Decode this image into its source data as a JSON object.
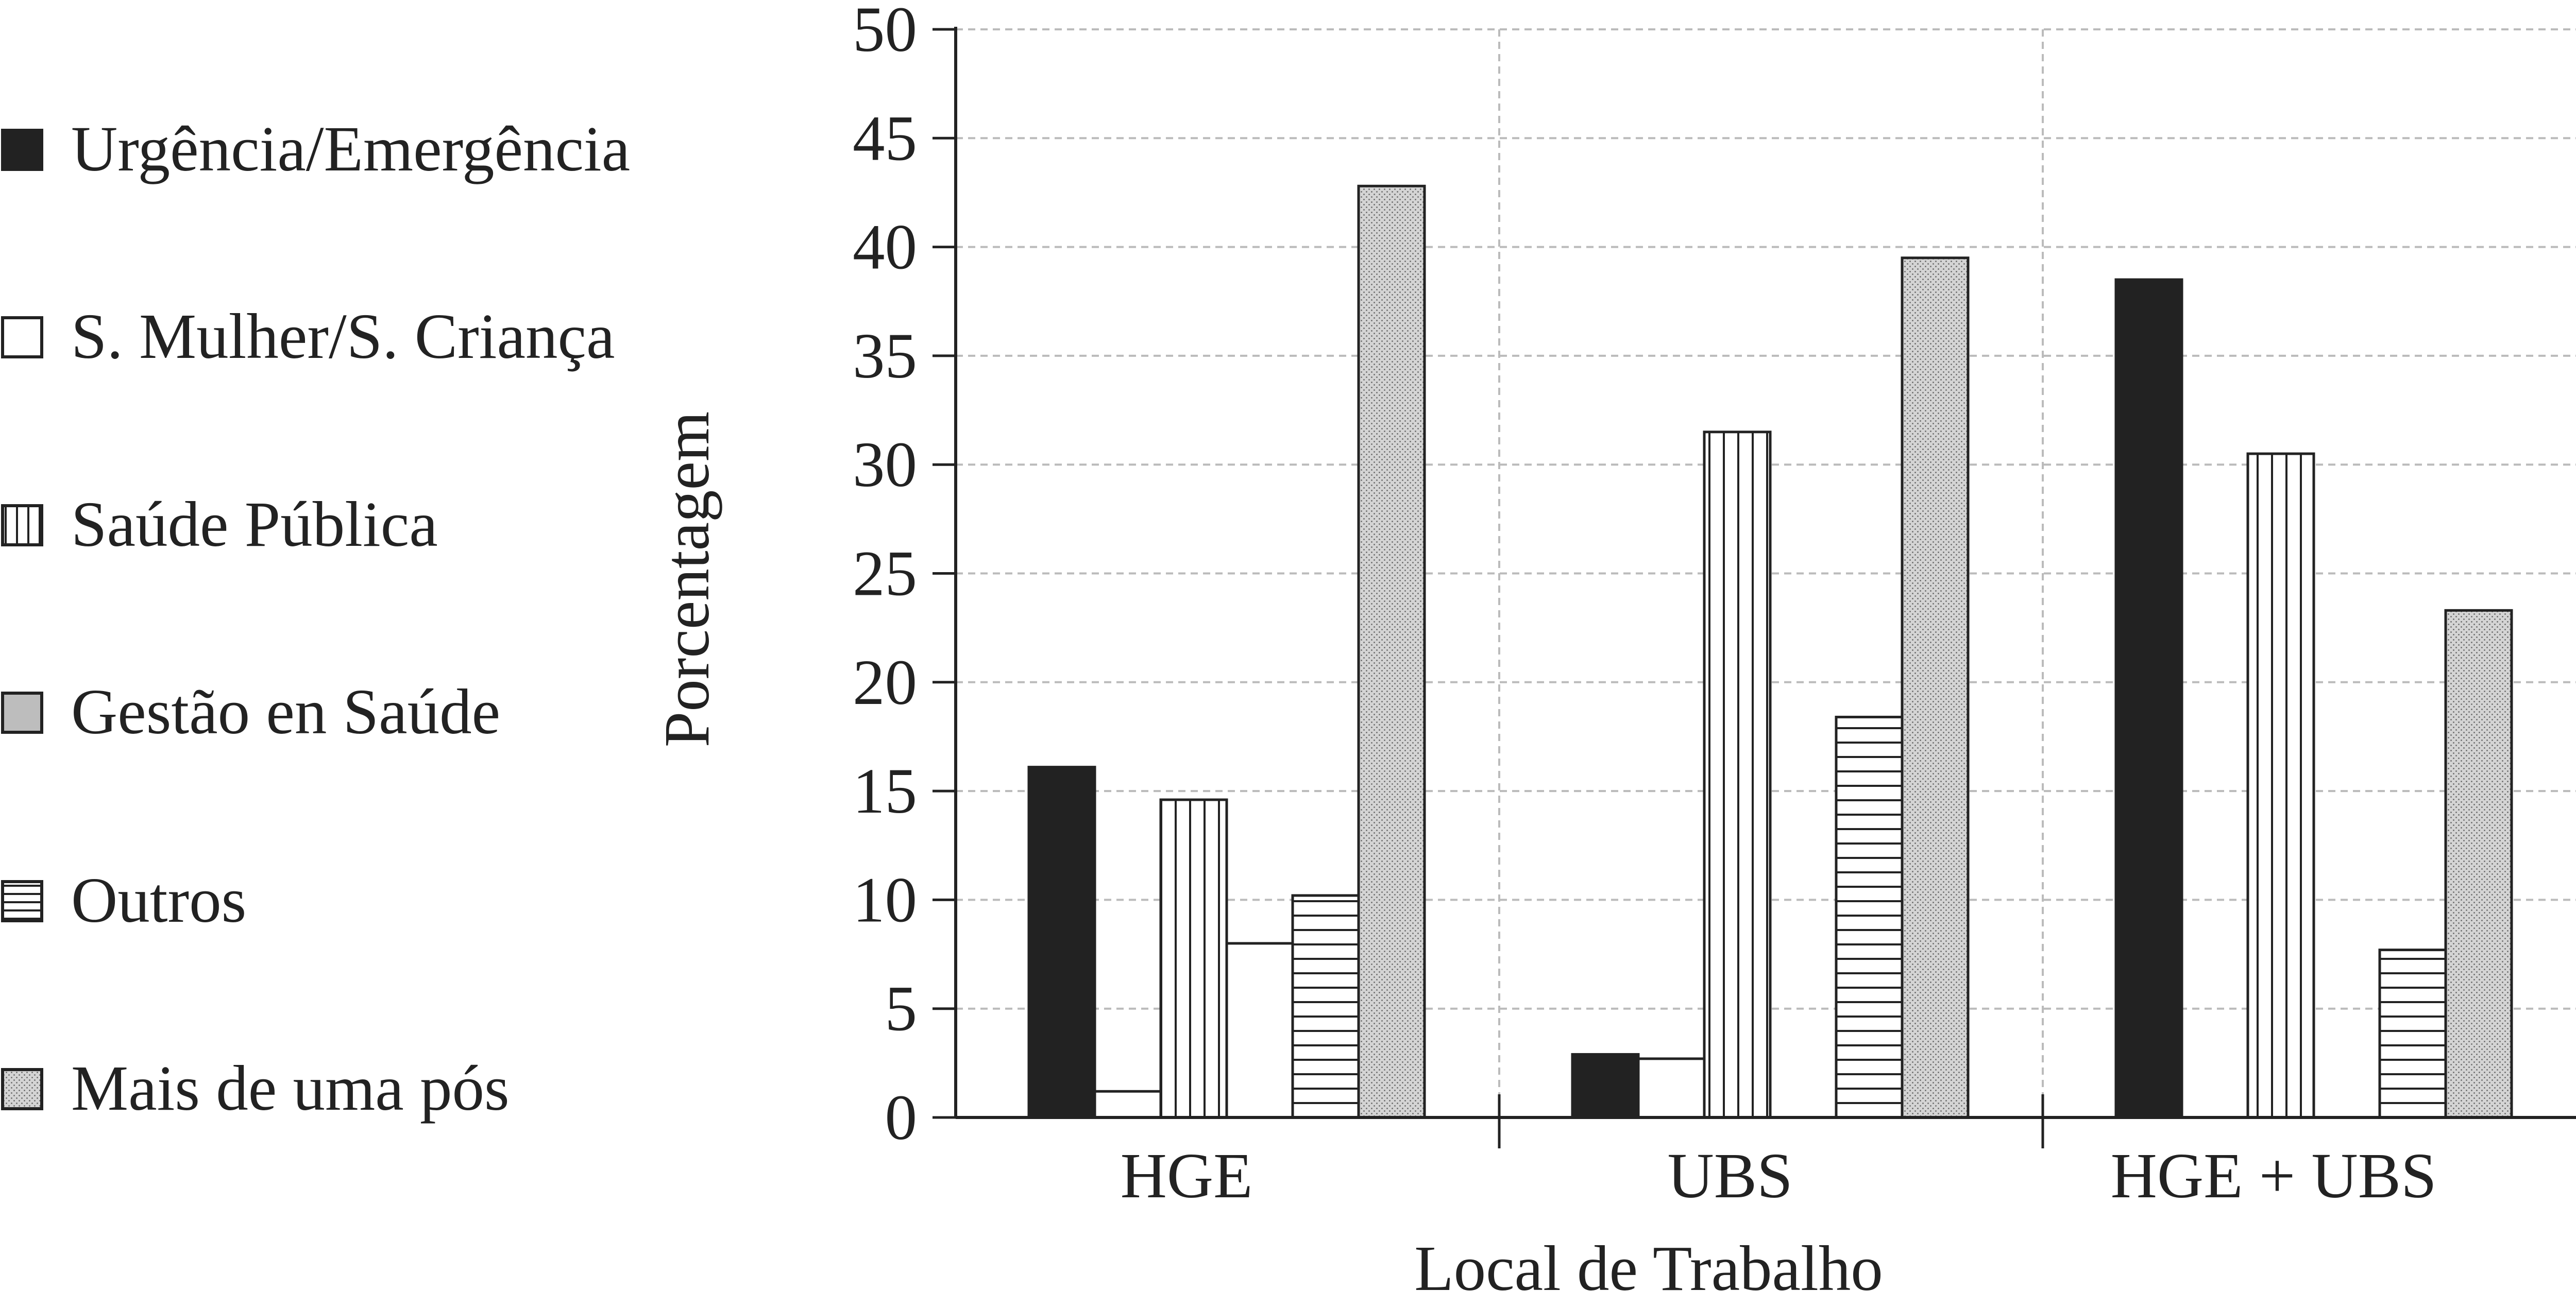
{
  "chart_data": {
    "type": "bar",
    "title": "",
    "xlabel": "Local de Trabalho",
    "ylabel": "Porcentagem",
    "ylim": [
      0,
      50
    ],
    "yticks": [
      0,
      5,
      10,
      15,
      20,
      25,
      30,
      35,
      40,
      45,
      50
    ],
    "grid": true,
    "legend_position": "left",
    "categories": [
      "HGE",
      "UBS",
      "HGE + UBS"
    ],
    "series": [
      {
        "name": "Urgência/Emergência",
        "pattern": "solid",
        "values": [
          16.1,
          2.9,
          38.5
        ]
      },
      {
        "name": "S. Mulher/S. Criança",
        "pattern": "white",
        "values": [
          1.2,
          2.7,
          0
        ]
      },
      {
        "name": "Saúde Pública",
        "pattern": "vertical",
        "values": [
          14.6,
          31.5,
          30.5
        ]
      },
      {
        "name": "Gestão en Saúde",
        "pattern": "white",
        "values": [
          8.0,
          0,
          0
        ]
      },
      {
        "name": "Outros",
        "pattern": "horizontal",
        "values": [
          10.2,
          18.4,
          7.7
        ]
      },
      {
        "name": "Mais de uma pós",
        "pattern": "dotted",
        "values": [
          42.8,
          39.5,
          23.3
        ]
      }
    ]
  },
  "colors": {
    "ink": "#222222",
    "grid": "#bbbbbb",
    "legend_gestao": "#bdbdbd",
    "dotted_fill": "#d4d4d4"
  }
}
